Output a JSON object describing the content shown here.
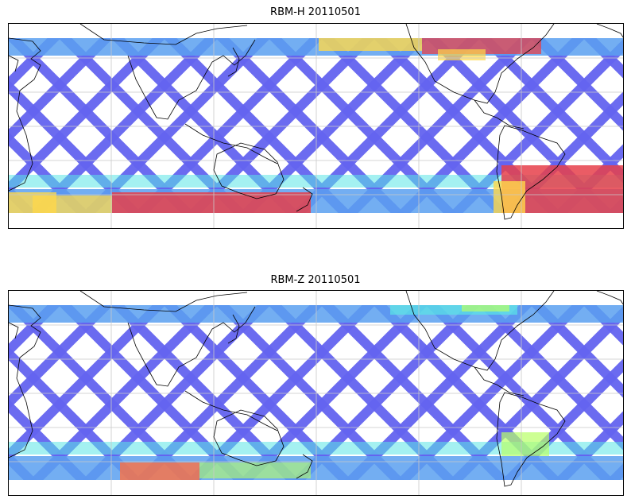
{
  "panels": [
    {
      "title": "RBM-H 20110501",
      "colormap": "jet",
      "hot_bands": "south-strong, north-mid-strong",
      "band_colors": {
        "north": "#ffd84a",
        "south": "#e6404a"
      }
    },
    {
      "title": "RBM-Z 20110501",
      "colormap": "jet",
      "hot_bands": "south-weak, north-weak",
      "band_colors": {
        "north": "#b8ff66",
        "south": "#ff7040"
      }
    }
  ],
  "colors": {
    "track_low": "#6464f0",
    "track_mid": "#5aa0f0",
    "track_cyan": "#5ae6e6",
    "coastline": "#000000",
    "grid": "#c8c8c8"
  }
}
